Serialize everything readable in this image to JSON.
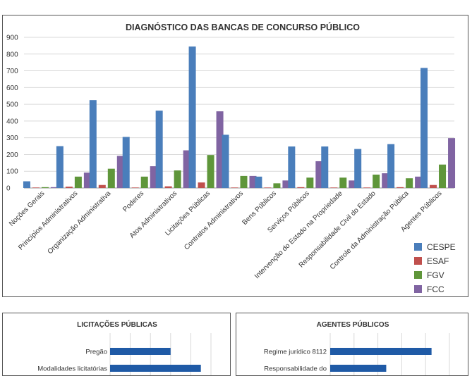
{
  "chart_data": [
    {
      "type": "bar",
      "title": "DIAGNÓSTICO DAS BANCAS DE CONCURSO PÚBLICO",
      "categories": [
        "Noções Gerais",
        "Princípios Administrativos",
        "Organização Administrativa",
        "Poderes",
        "Atos Administrativos",
        "Licitações Públicas",
        "Contratos Administrativos",
        "Bens Públicos",
        "Serviços Públicos",
        "Intervenção do Estado na Propriedade",
        "Responsabilidade Civil do Estado",
        "Controle da Administração Pública",
        "Agentes Públicos"
      ],
      "ylim": [
        0,
        900
      ],
      "yticks": [
        0,
        100,
        200,
        300,
        400,
        500,
        600,
        700,
        800,
        900
      ],
      "grid": true,
      "legend_position": "bottom-right",
      "series": [
        {
          "name": "CESPE",
          "color": "#4a7ebb",
          "values": [
            40,
            250,
            525,
            305,
            462,
            845,
            318,
            68,
            248,
            248,
            233,
            262,
            717
          ]
        },
        {
          "name": "ESAF",
          "color": "#c0504d",
          "values": [
            3,
            8,
            18,
            3,
            10,
            33,
            3,
            3,
            5,
            3,
            3,
            5,
            18
          ]
        },
        {
          "name": "FGV",
          "color": "#5f963a",
          "values": [
            5,
            68,
            115,
            68,
            105,
            197,
            72,
            28,
            62,
            62,
            80,
            58,
            140
          ]
        },
        {
          "name": "FCC",
          "color": "#8064a2",
          "values": [
            5,
            92,
            192,
            130,
            225,
            458,
            72,
            45,
            160,
            45,
            88,
            68,
            298
          ]
        }
      ]
    },
    {
      "type": "bar",
      "orientation": "horizontal",
      "title": "LICITAÇÕES PÚBLICAS",
      "categories": [
        "Pregão",
        "Modalidades licitatórias"
      ],
      "series": [
        {
          "color": "#1f5aa6",
          "values": [
            60,
            90
          ]
        }
      ],
      "xlim": [
        0,
        100
      ],
      "grid": true
    },
    {
      "type": "bar",
      "orientation": "horizontal",
      "title": "AGENTES PÚBLICOS",
      "categories": [
        "Regime jurídico 8112",
        "Responsabilidade do"
      ],
      "series": [
        {
          "color": "#1f5aa6",
          "values": [
            85,
            47
          ]
        }
      ],
      "xlim": [
        0,
        100
      ],
      "grid": true
    }
  ]
}
